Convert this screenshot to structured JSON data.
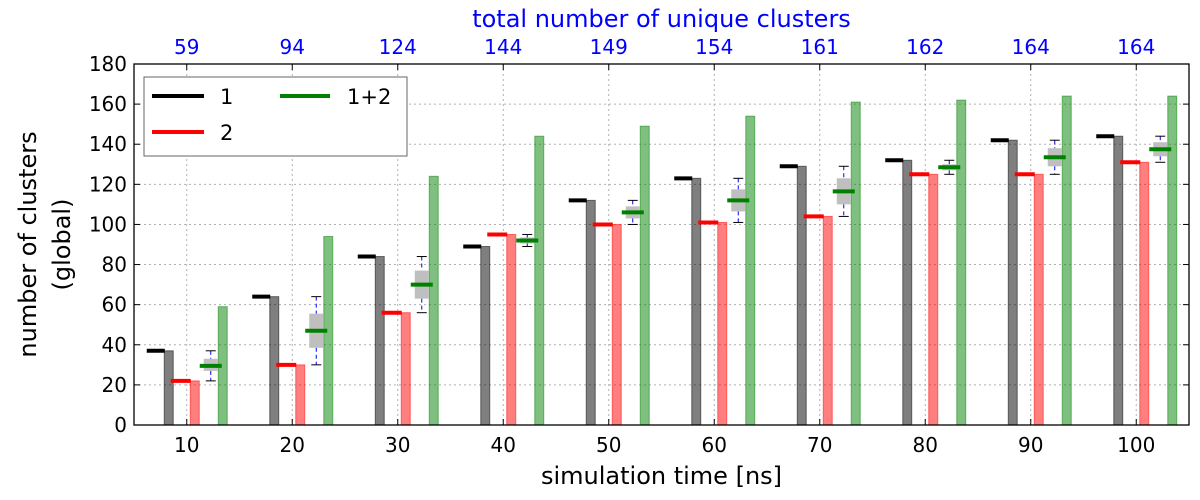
{
  "chart_data": {
    "type": "bar",
    "top_title": "total number of unique clusters",
    "xlabel": "simulation time [ns]",
    "ylabel_lines": [
      "number of clusters",
      "(global)"
    ],
    "ylim": [
      0,
      180
    ],
    "yticks": [
      0,
      20,
      40,
      60,
      80,
      100,
      120,
      140,
      160,
      180
    ],
    "grid": true,
    "legend_position": "top-left",
    "categories": [
      "10",
      "20",
      "30",
      "40",
      "50",
      "60",
      "70",
      "80",
      "90",
      "100"
    ],
    "top_tick_labels": [
      "59",
      "94",
      "124",
      "144",
      "149",
      "154",
      "161",
      "162",
      "164",
      "164"
    ],
    "series": [
      {
        "name": "1",
        "color": "#000000",
        "values": [
          37,
          64,
          84,
          89,
          112,
          123,
          129,
          132,
          142,
          144
        ]
      },
      {
        "name": "2",
        "color": "#ff0000",
        "values": [
          22,
          30,
          56,
          95,
          100,
          101,
          104,
          125,
          125,
          131
        ]
      },
      {
        "name": "1+2",
        "color": "#008000",
        "values": [
          59,
          94,
          124,
          144,
          149,
          154,
          161,
          162,
          164,
          164
        ]
      }
    ],
    "box_stats": [
      {
        "min": 22,
        "q1": 27,
        "median": 29.5,
        "q3": 33,
        "max": 37
      },
      {
        "min": 30,
        "q1": 38.5,
        "median": 47,
        "q3": 55.5,
        "max": 64
      },
      {
        "min": 56,
        "q1": 63,
        "median": 70,
        "q3": 77,
        "max": 84
      },
      {
        "min": 89,
        "q1": 90.5,
        "median": 92,
        "q3": 93.5,
        "max": 95
      },
      {
        "min": 100,
        "q1": 103,
        "median": 106,
        "q3": 109,
        "max": 112
      },
      {
        "min": 101,
        "q1": 106.5,
        "median": 112,
        "q3": 117.5,
        "max": 123
      },
      {
        "min": 104,
        "q1": 110,
        "median": 116.5,
        "q3": 123,
        "max": 129
      },
      {
        "min": 125,
        "q1": 127,
        "median": 128.5,
        "q3": 130,
        "max": 132
      },
      {
        "min": 125,
        "q1": 129,
        "median": 133.5,
        "q3": 138,
        "max": 142
      },
      {
        "min": 131,
        "q1": 134,
        "median": 137.5,
        "q3": 141,
        "max": 144
      }
    ],
    "colors": {
      "top_axis": "#0000ff",
      "box_fill": "#bfbfbf",
      "whisker": "#0000ff",
      "grid": "#b0b0b0"
    }
  }
}
